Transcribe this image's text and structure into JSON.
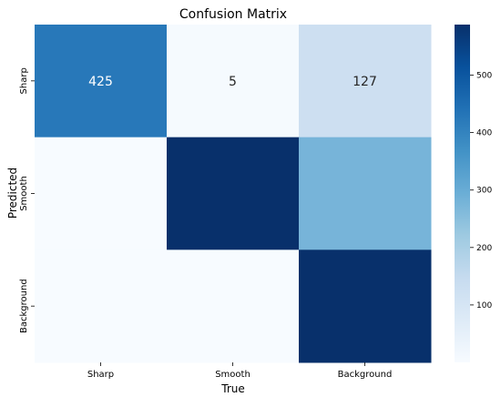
{
  "chart_data": {
    "type": "heatmap",
    "title": "Confusion Matrix",
    "xlabel": "True",
    "ylabel": "Predicted",
    "x_categories": [
      "Sharp",
      "Smooth",
      "Background"
    ],
    "y_categories": [
      "Sharp",
      "Smooth",
      "Background"
    ],
    "values": [
      [
        425,
        5,
        127
      ],
      [
        null,
        588,
        277
      ],
      [
        null,
        null,
        588
      ]
    ],
    "cell_annotations": [
      [
        "425",
        "5",
        "127"
      ],
      [
        "",
        "",
        ""
      ],
      [
        "",
        "",
        ""
      ]
    ],
    "colorbar": {
      "colormap": "Blues",
      "range": [
        0,
        588
      ],
      "ticks": [
        100,
        200,
        300,
        400,
        500
      ]
    }
  }
}
